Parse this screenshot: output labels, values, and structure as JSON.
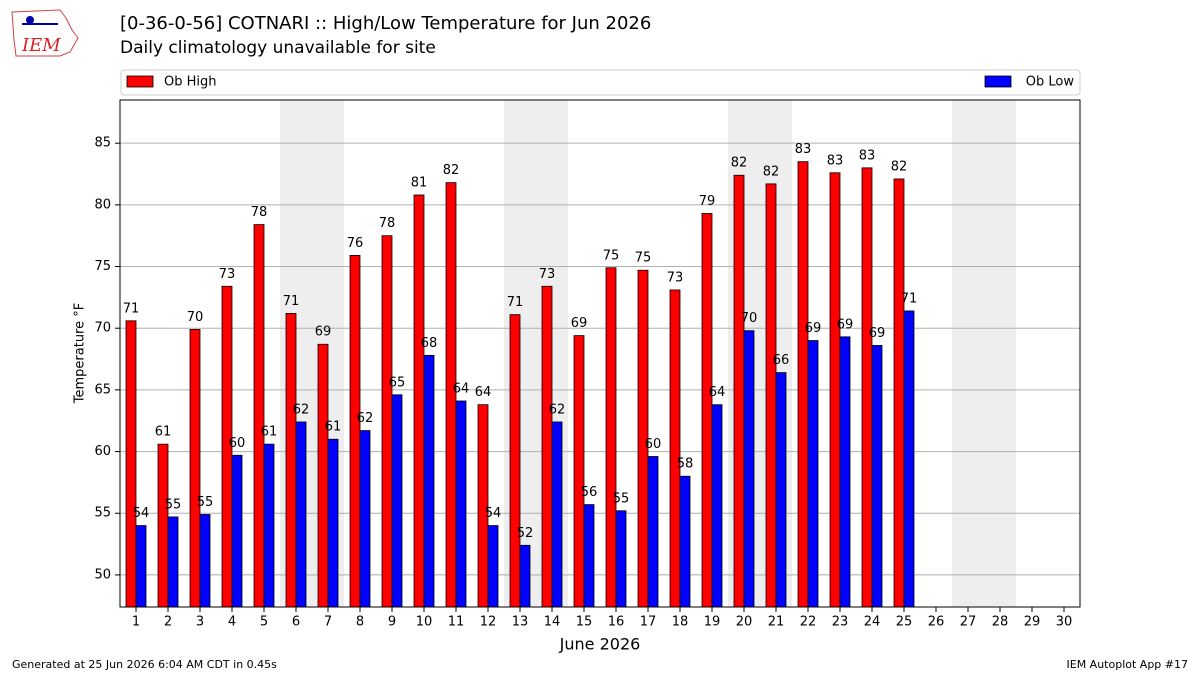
{
  "chart_data": {
    "type": "bar",
    "title": "[0-36-0-56] COTNARI :: High/Low Temperature for Jun 2026",
    "subtitle": "Daily climatology unavailable for site",
    "logo_text": "IEM",
    "xlabel": "June 2026",
    "ylabel": "Temperature °F",
    "footer_left": "Generated at 25 Jun 2026 6:04 AM CDT in 0.45s",
    "footer_right": "IEM Autoplot App #17",
    "categories": [
      "1",
      "2",
      "3",
      "4",
      "5",
      "6",
      "7",
      "8",
      "9",
      "10",
      "11",
      "12",
      "13",
      "14",
      "15",
      "16",
      "17",
      "18",
      "19",
      "20",
      "21",
      "22",
      "23",
      "24",
      "25",
      "26",
      "27",
      "28",
      "29",
      "30"
    ],
    "shaded_days": [
      "6",
      "7",
      "13",
      "14",
      "20",
      "21",
      "27",
      "28"
    ],
    "shade_color": "#eeeeee",
    "series": [
      {
        "name": "Ob High",
        "color": "#ff0000",
        "values": [
          70.6,
          60.6,
          69.9,
          73.4,
          78.4,
          71.2,
          68.7,
          75.9,
          77.5,
          80.8,
          81.8,
          63.8,
          71.1,
          73.4,
          69.4,
          74.9,
          74.7,
          73.1,
          79.3,
          82.4,
          81.7,
          83.5,
          82.6,
          83.0,
          82.1,
          null,
          null,
          null,
          null,
          null
        ],
        "value_labels": [
          "71",
          "61",
          "70",
          "73",
          "78",
          "71",
          "69",
          "76",
          "78",
          "81",
          "82",
          "64",
          "71",
          "73",
          "69",
          "75",
          "75",
          "73",
          "79",
          "82",
          "82",
          "83",
          "83",
          "83",
          "82",
          null,
          null,
          null,
          null,
          null
        ]
      },
      {
        "name": "Ob Low",
        "color": "#0000ff",
        "values": [
          54.0,
          54.7,
          54.9,
          59.7,
          60.6,
          62.4,
          61.0,
          61.7,
          64.6,
          67.8,
          64.1,
          54.0,
          52.4,
          62.4,
          55.7,
          55.2,
          59.6,
          58.0,
          63.8,
          69.8,
          66.4,
          69.0,
          69.3,
          68.6,
          71.4,
          null,
          null,
          null,
          null,
          null
        ],
        "value_labels": [
          "54",
          "55",
          "55",
          "60",
          "61",
          "62",
          "61",
          "62",
          "65",
          "68",
          "64",
          "54",
          "52",
          "62",
          "56",
          "55",
          "60",
          "58",
          "64",
          "70",
          "66",
          "69",
          "69",
          "69",
          "71",
          null,
          null,
          null,
          null,
          null
        ]
      }
    ],
    "ylim": [
      47.4,
      88.5
    ],
    "yticks": [
      50,
      55,
      60,
      65,
      70,
      75,
      80,
      85
    ],
    "grid": true
  }
}
